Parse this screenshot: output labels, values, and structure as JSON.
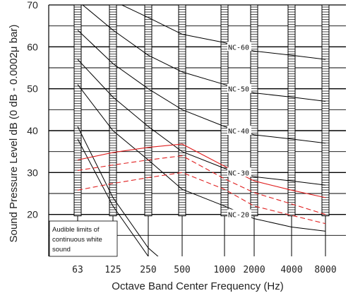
{
  "chart_data": {
    "type": "line",
    "xlabel": "Octave Band Center Frequency (Hz)",
    "ylabel": "Sound Pressure Level dB (0 dB - 0.0002μ bar)",
    "categories": [
      "63",
      "125",
      "250",
      "500",
      "1000",
      "2000",
      "4000",
      "8000"
    ],
    "ylim": [
      10,
      70
    ],
    "yticks": [
      20,
      30,
      40,
      50,
      60,
      70
    ],
    "grid": true,
    "nc_curves": [
      {
        "name": "NC-60",
        "values": [
          77,
          71,
          67,
          63,
          61,
          59,
          58,
          57
        ]
      },
      {
        "name": "NC-50",
        "values": [
          71,
          64,
          58,
          54,
          51,
          49,
          48,
          47
        ]
      },
      {
        "name": "NC-40",
        "values": [
          64,
          56,
          50,
          45,
          41,
          39,
          38,
          37
        ]
      },
      {
        "name": "NC-30",
        "values": [
          57,
          48,
          41,
          35,
          31,
          29,
          28,
          27
        ]
      },
      {
        "name": "NC-20",
        "values": [
          51,
          40,
          33,
          26,
          22,
          19,
          17,
          16
        ]
      }
    ],
    "series": [
      {
        "style": "solid",
        "color": "#e02020",
        "values": [
          33,
          34.8,
          36,
          36.8,
          31.5,
          28,
          25.8,
          24
        ]
      },
      {
        "style": "dashed",
        "color": "#e02020",
        "values": [
          30.5,
          31.8,
          33,
          34,
          28.5,
          25.2,
          22.5,
          20
        ]
      },
      {
        "style": "dashed",
        "color": "#e02020",
        "values": [
          25.8,
          27.4,
          28.8,
          30,
          26,
          22,
          19.8,
          17.8
        ]
      }
    ],
    "audible_limit_curves": [
      {
        "values": [
          41,
          24,
          12,
          5
        ]
      },
      {
        "values": [
          38,
          22,
          10,
          3
        ]
      }
    ],
    "annotations": [
      "Audible limits of",
      "continuous white",
      "sound"
    ]
  }
}
